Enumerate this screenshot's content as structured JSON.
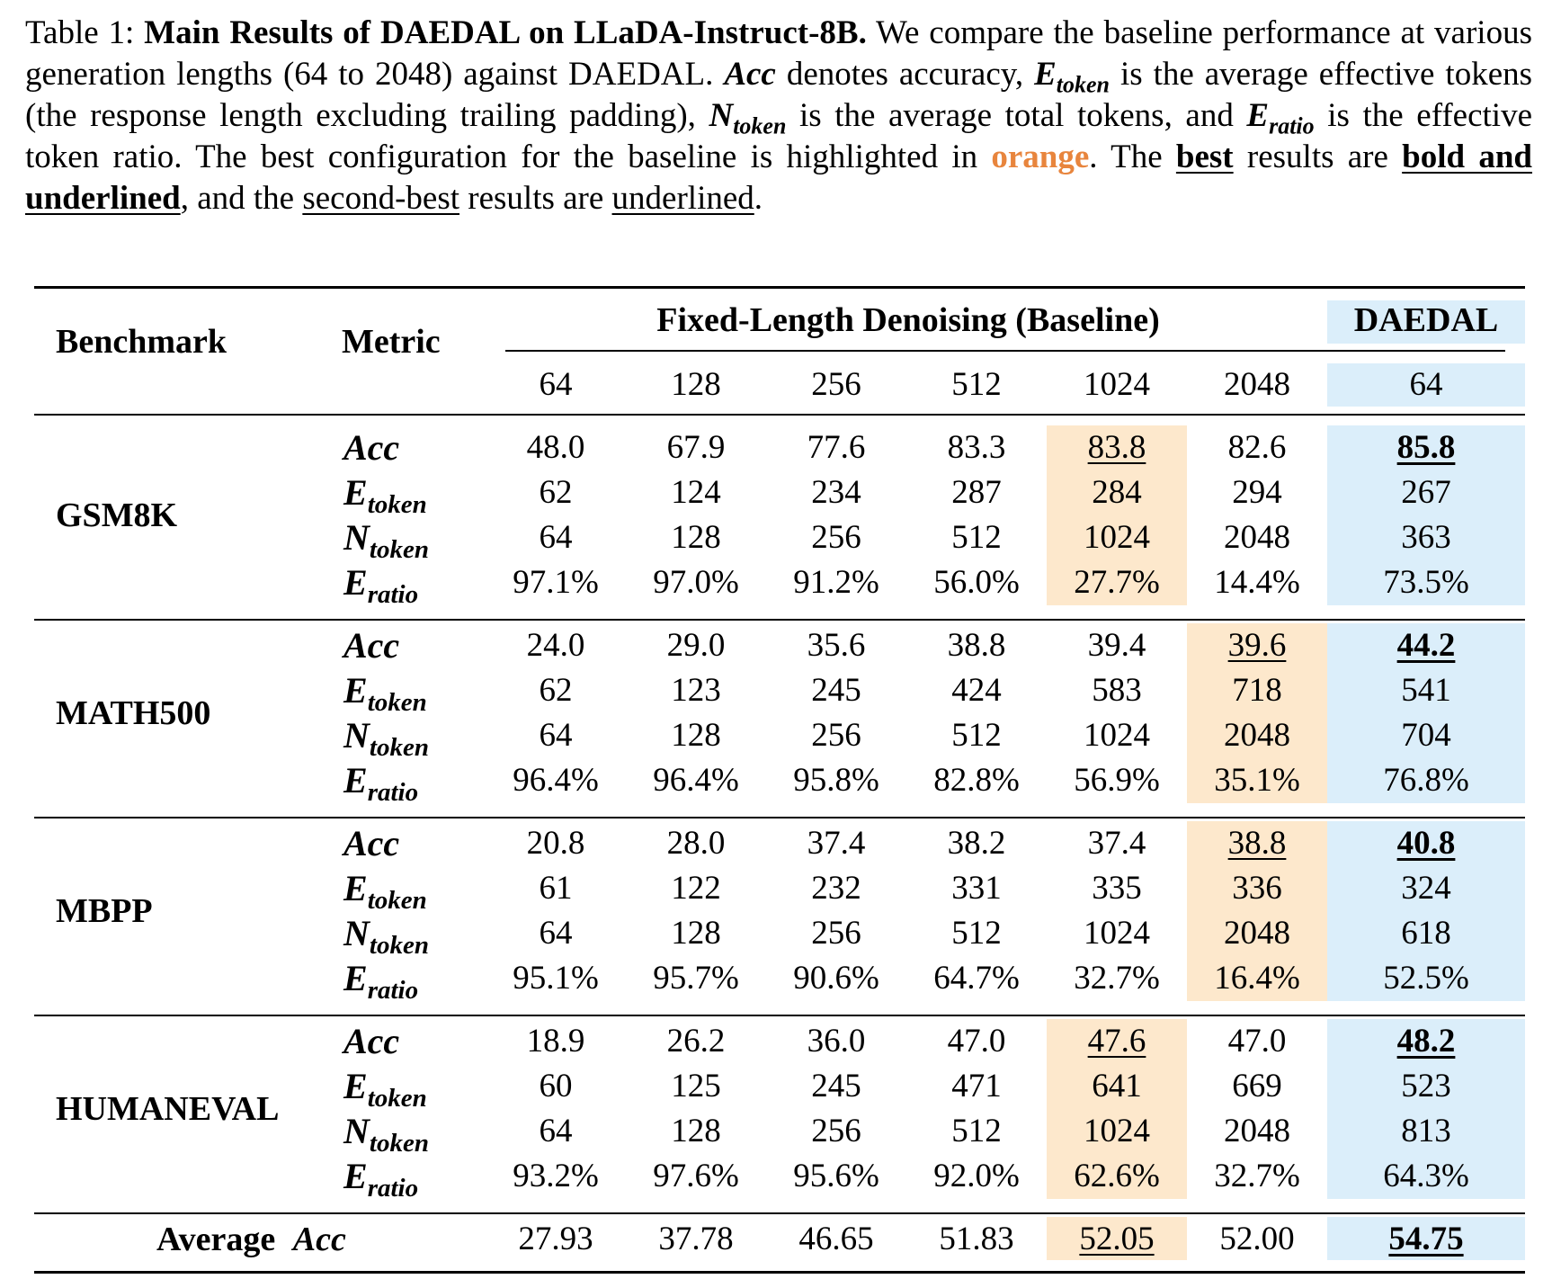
{
  "caption": {
    "label": "Table 1:",
    "title": "Main Results of DAEDAL on LLaDA-Instruct-8B.",
    "text_1": "We compare the baseline performance at various generation lengths (64 to 2048) against DAEDAL.",
    "acc_sym": "Acc",
    "text_2": "denotes accuracy,",
    "e_sym": "E",
    "e_sub": "token",
    "text_3": "is the average effective tokens (the response length excluding trailing padding),",
    "n_sym": "N",
    "n_sub": "token",
    "text_4": "is the average total tokens, and",
    "r_sym": "E",
    "r_sub": "ratio",
    "text_5": "is the effective token ratio. The best configuration for the baseline is highlighted in",
    "orange_word": "orange",
    "text_6": ". The",
    "best_word": "best",
    "text_7": "results are",
    "bold_ul_phrase": "bold and underlined",
    "text_8": ", and the",
    "second_best_phrase": "second-best",
    "text_9": "results are",
    "underlined_word": "underlined",
    "text_10": "."
  },
  "table": {
    "header": {
      "benchmark": "Benchmark",
      "metric": "Metric",
      "baseline_group": "Fixed-Length Denoising (Baseline)",
      "daedal_group": "DAEDAL",
      "lengths": [
        "64",
        "128",
        "256",
        "512",
        "1024",
        "2048",
        "64"
      ]
    },
    "metric_labels": [
      {
        "sym": "Acc",
        "sub": ""
      },
      {
        "sym": "E",
        "sub": "token"
      },
      {
        "sym": "N",
        "sub": "token"
      },
      {
        "sym": "E",
        "sub": "ratio"
      }
    ],
    "benchmarks": [
      {
        "name": "GSM8K",
        "highlight_col": 4,
        "rows": [
          [
            "48.0",
            "67.9",
            "77.6",
            "83.3",
            "83.8",
            "82.6",
            "85.8"
          ],
          [
            "62",
            "124",
            "234",
            "287",
            "284",
            "294",
            "267"
          ],
          [
            "64",
            "128",
            "256",
            "512",
            "1024",
            "2048",
            "363"
          ],
          [
            "97.1%",
            "97.0%",
            "91.2%",
            "56.0%",
            "27.7%",
            "14.4%",
            "73.5%"
          ]
        ]
      },
      {
        "name": "MATH500",
        "highlight_col": 5,
        "rows": [
          [
            "24.0",
            "29.0",
            "35.6",
            "38.8",
            "39.4",
            "39.6",
            "44.2"
          ],
          [
            "62",
            "123",
            "245",
            "424",
            "583",
            "718",
            "541"
          ],
          [
            "64",
            "128",
            "256",
            "512",
            "1024",
            "2048",
            "704"
          ],
          [
            "96.4%",
            "96.4%",
            "95.8%",
            "82.8%",
            "56.9%",
            "35.1%",
            "76.8%"
          ]
        ]
      },
      {
        "name": "MBPP",
        "highlight_col": 5,
        "rows": [
          [
            "20.8",
            "28.0",
            "37.4",
            "38.2",
            "37.4",
            "38.8",
            "40.8"
          ],
          [
            "61",
            "122",
            "232",
            "331",
            "335",
            "336",
            "324"
          ],
          [
            "64",
            "128",
            "256",
            "512",
            "1024",
            "2048",
            "618"
          ],
          [
            "95.1%",
            "95.7%",
            "90.6%",
            "64.7%",
            "32.7%",
            "16.4%",
            "52.5%"
          ]
        ]
      },
      {
        "name": "HUMANEVAL",
        "highlight_col": 4,
        "rows": [
          [
            "18.9",
            "26.2",
            "36.0",
            "47.0",
            "47.6",
            "47.0",
            "48.2"
          ],
          [
            "60",
            "125",
            "245",
            "471",
            "641",
            "669",
            "523"
          ],
          [
            "64",
            "128",
            "256",
            "512",
            "1024",
            "2048",
            "813"
          ],
          [
            "93.2%",
            "97.6%",
            "95.6%",
            "92.0%",
            "62.6%",
            "32.7%",
            "64.3%"
          ]
        ]
      }
    ],
    "average": {
      "label": "Average",
      "label_sym": "Acc",
      "highlight_col": 4,
      "values": [
        "27.93",
        "37.78",
        "46.65",
        "51.83",
        "52.05",
        "52.00",
        "54.75"
      ]
    },
    "colors": {
      "orange_highlight": "#fde8cc",
      "blue_highlight": "#dbeefa",
      "orange_text": "#e8853d"
    }
  }
}
